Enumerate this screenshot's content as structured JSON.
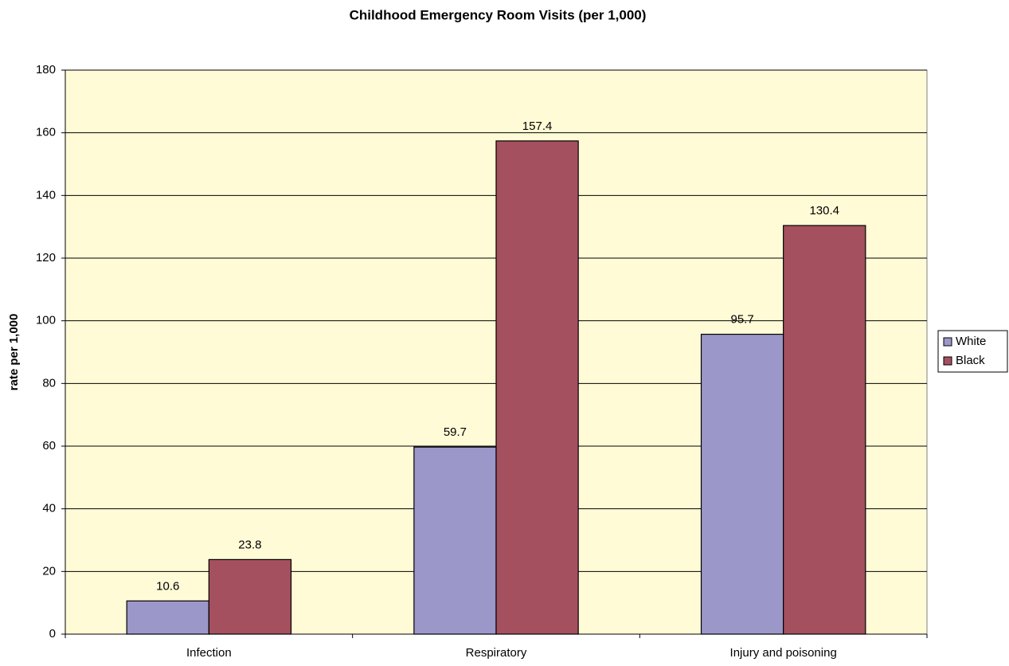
{
  "chart_data": {
    "type": "bar",
    "title": "Childhood Emergency Room Visits (per 1,000)",
    "y_label": "rate per 1,000",
    "categories": [
      "Infection",
      "Respiratory",
      "Injury and poisoning"
    ],
    "series": [
      {
        "name": "White",
        "color": "#9b97c9",
        "values": [
          10.6,
          59.7,
          95.7
        ]
      },
      {
        "name": "Black",
        "color": "#a5505f",
        "values": [
          23.8,
          157.4,
          130.4
        ]
      }
    ],
    "ylim": [
      0,
      180
    ],
    "yticks": [
      0,
      20,
      40,
      60,
      80,
      100,
      120,
      140,
      160,
      180
    ],
    "grid": true,
    "legend": "right",
    "background": "#fffbd6"
  }
}
